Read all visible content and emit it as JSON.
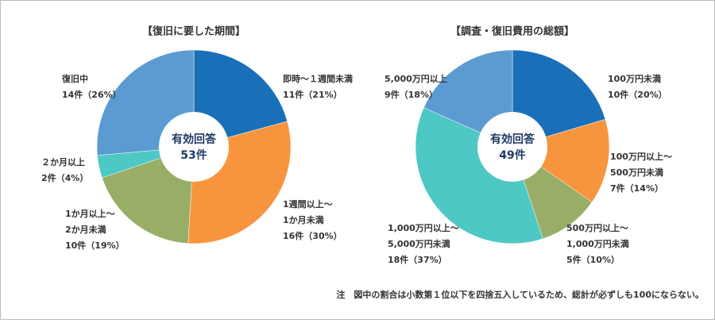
{
  "chart_data": [
    {
      "type": "pie",
      "title": "【復旧に要した期間】",
      "center_label": "有効回答",
      "center_total": "53件",
      "categories": [
        [
          "即時～１週間未満"
        ],
        [
          "1週間以上～",
          "1か月未満"
        ],
        [
          "1か月以上～",
          "2か月未満"
        ],
        [
          "２か月以上"
        ],
        [
          "復旧中"
        ]
      ],
      "values": [
        11,
        16,
        10,
        2,
        14
      ],
      "value_labels": [
        "11件（21%）",
        "16件（30%）",
        "10件（19%）",
        "2件（4%）",
        "14件（26%）"
      ],
      "colors": [
        "#1a70b8",
        "#f7953e",
        "#98ad66",
        "#4ec8c4",
        "#5b9bd2"
      ]
    },
    {
      "type": "pie",
      "title": "【調査・復旧費用の総額】",
      "center_label": "有効回答",
      "center_total": "49件",
      "categories": [
        [
          "100万円未満"
        ],
        [
          "100万円以上～",
          "500万円未満"
        ],
        [
          "500万円以上～",
          "1,000万円未満"
        ],
        [
          "1,000万円以上～",
          "5,000万円未満"
        ],
        [
          "5,000万円以上"
        ]
      ],
      "values": [
        10,
        7,
        5,
        18,
        9
      ],
      "value_labels": [
        "10件（20%）",
        "7件（14%）",
        "5件（10%）",
        "18件（37%）",
        "9件（18%）"
      ],
      "colors": [
        "#1a70b8",
        "#f7953e",
        "#98ad66",
        "#4ec8c4",
        "#5b9bd2"
      ]
    }
  ],
  "note": "注　図中の割合は小数第１位以下を四捨五入しているため、総計が必ずしも100にならない。"
}
